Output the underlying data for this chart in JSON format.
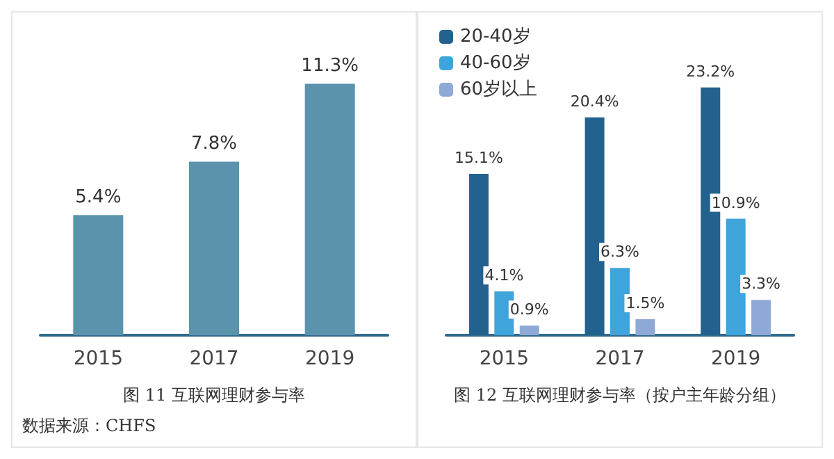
{
  "chart_data": [
    {
      "type": "bar",
      "title": "图 11 互联网理财参与率",
      "annotations": [
        "数据来源：CHFS"
      ],
      "categories": [
        "2015",
        "2017",
        "2019"
      ],
      "series": [
        {
          "color": "#5b93ad",
          "values": [
            5.4,
            7.8,
            11.3
          ],
          "value_labels": [
            "5.4%",
            "7.8%",
            "11.3%"
          ]
        }
      ],
      "tick_labels": "x",
      "grid": false,
      "legend": false
    },
    {
      "type": "bar",
      "title": "图 12 互联网理财参与率（按户主年龄分组）",
      "categories": [
        "2015",
        "2017",
        "2019"
      ],
      "series": [
        {
          "name": "20-40岁",
          "color": "#23628f",
          "values": [
            15.1,
            20.4,
            23.2
          ],
          "value_labels": [
            "15.1%",
            "20.4%",
            "23.2%"
          ]
        },
        {
          "name": "40-60岁",
          "color": "#3fa4db",
          "values": [
            4.1,
            6.3,
            10.9
          ],
          "value_labels": [
            "4.1%",
            "6.3%",
            "10.9%"
          ]
        },
        {
          "name": "60岁以上",
          "color": "#8fa9d6",
          "values": [
            0.9,
            1.5,
            3.3
          ],
          "value_labels": [
            "0.9%",
            "1.5%",
            "3.3%"
          ]
        }
      ],
      "tick_labels": "x",
      "grid": false,
      "legend": "top left"
    }
  ]
}
